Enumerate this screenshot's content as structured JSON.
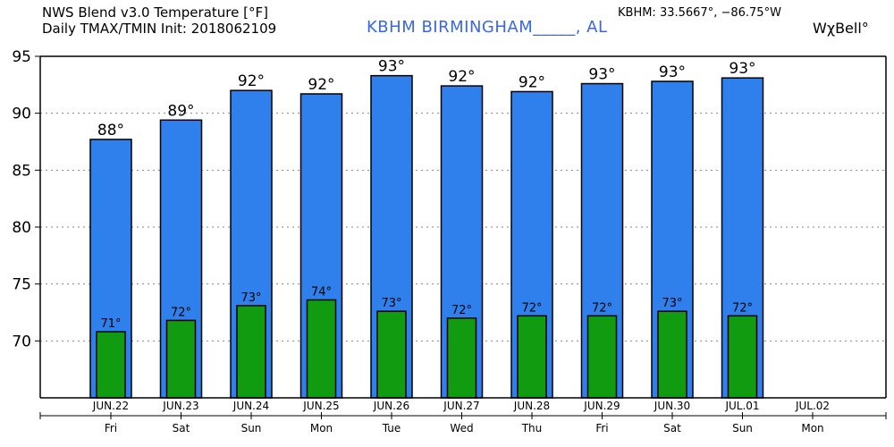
{
  "header": {
    "title_line1": "NWS Blend v3.0 Temperature [°F]",
    "title_line2": "Daily TMAX/TMIN Init: 2018062109",
    "station": "KBHM  BIRMINGHAM_____,  AL",
    "coords": "KBHM: 33.5667°,  −86.75°W",
    "brand": "WχBell°"
  },
  "colors": {
    "tmax": "#2f80ed",
    "tmin": "#119b11",
    "grid": "#888888"
  },
  "chart_data": {
    "type": "bar",
    "title": "NWS Blend v3.0 Temperature [°F]",
    "xlabel": "",
    "ylabel": "",
    "ylim": [
      65,
      95
    ],
    "yticks": [
      70,
      75,
      80,
      85,
      90,
      95
    ],
    "grid": true,
    "categories": [
      "JUN.22",
      "JUN.23",
      "JUN.24",
      "JUN.25",
      "JUN.26",
      "JUN.27",
      "JUN.28",
      "JUN.29",
      "JUN.30",
      "JUL.01",
      "JUL.02"
    ],
    "weekdays": [
      "Fri",
      "Sat",
      "Sun",
      "Mon",
      "Tue",
      "Wed",
      "Thu",
      "Fri",
      "Sat",
      "Sun",
      "Mon"
    ],
    "series": [
      {
        "name": "TMAX",
        "values": [
          87.7,
          89.4,
          92.0,
          91.7,
          93.3,
          92.4,
          91.9,
          92.6,
          92.8,
          93.1,
          null
        ],
        "labels": [
          "88°",
          "89°",
          "92°",
          "92°",
          "93°",
          "92°",
          "92°",
          "93°",
          "93°",
          "93°",
          ""
        ]
      },
      {
        "name": "TMIN",
        "values": [
          70.8,
          71.8,
          73.1,
          73.6,
          72.6,
          72.0,
          72.2,
          72.2,
          72.6,
          72.2,
          null
        ],
        "labels": [
          "71°",
          "72°",
          "73°",
          "74°",
          "73°",
          "72°",
          "72°",
          "72°",
          "73°",
          "72°",
          ""
        ]
      }
    ]
  }
}
